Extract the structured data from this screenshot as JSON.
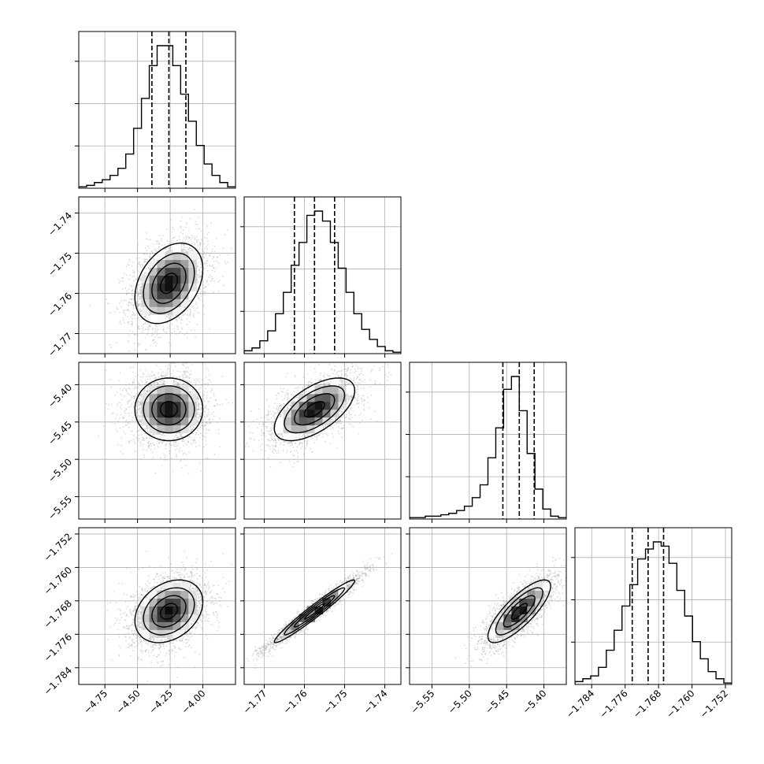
{
  "figure": {
    "type": "corner_plot",
    "n_params": 4,
    "background": "#ffffff",
    "line_color": "#000000",
    "point_color": "#9a9a9a",
    "grid_color": "#b0b0b0"
  },
  "chart_data": {
    "type": "heatmap",
    "description_hidden": true,
    "params": [
      {
        "mean": -4.26,
        "q16": -4.39,
        "q50": -4.26,
        "q84": -4.13,
        "range": [
          -4.95,
          -3.75
        ],
        "ticks": [
          -4.75,
          -4.5,
          -4.25,
          -4.0
        ],
        "tick_labels": [
          "−4.75",
          "−4.50",
          "−4.25",
          "−4.00"
        ]
      },
      {
        "mean": -1.7575,
        "q16": -1.7625,
        "q50": -1.7575,
        "q84": -1.7525,
        "range": [
          -1.775,
          -1.736
        ],
        "ticks": [
          -1.77,
          -1.76,
          -1.75,
          -1.74
        ],
        "tick_labels": [
          "−1.77",
          "−1.76",
          "−1.75",
          "−1.74"
        ]
      },
      {
        "mean": -5.433,
        "q16": -5.455,
        "q50": -5.433,
        "q84": -5.413,
        "range": [
          -5.58,
          -5.37
        ],
        "ticks": [
          -5.55,
          -5.5,
          -5.45,
          -5.4
        ],
        "tick_labels": [
          "−5.55",
          "−5.50",
          "−5.45",
          "−5.40"
        ]
      },
      {
        "mean": -1.7705,
        "q16": -1.7743,
        "q50": -1.7705,
        "q84": -1.7668,
        "range": [
          -1.788,
          -1.7505
        ],
        "ticks": [
          -1.784,
          -1.776,
          -1.768,
          -1.76,
          -1.752
        ],
        "tick_labels": [
          "−1.784",
          "−1.776",
          "−1.768",
          "−1.760",
          "−1.752"
        ]
      }
    ],
    "correlations": [
      {
        "i": 1,
        "j": 0,
        "rho": 0.35
      },
      {
        "i": 2,
        "j": 0,
        "rho": 0.0
      },
      {
        "i": 2,
        "j": 1,
        "rho": 0.6
      },
      {
        "i": 3,
        "j": 0,
        "rho": 0.3
      },
      {
        "i": 3,
        "j": 1,
        "rho": 0.97
      },
      {
        "i": 3,
        "j": 2,
        "rho": 0.8
      }
    ],
    "histograms": [
      {
        "bins": 20,
        "counts": [
          0.01,
          0.02,
          0.04,
          0.06,
          0.09,
          0.14,
          0.24,
          0.42,
          0.63,
          0.86,
          1.0,
          1.0,
          0.86,
          0.66,
          0.47,
          0.3,
          0.17,
          0.09,
          0.04,
          0.01
        ],
        "range": [
          -4.95,
          -3.75
        ]
      },
      {
        "bins": 20,
        "counts": [
          0.02,
          0.04,
          0.09,
          0.16,
          0.28,
          0.43,
          0.62,
          0.78,
          0.97,
          1.0,
          0.93,
          0.78,
          0.6,
          0.43,
          0.28,
          0.17,
          0.1,
          0.05,
          0.02,
          0.01
        ],
        "range": [
          -1.775,
          -1.736
        ]
      },
      {
        "bins": 20,
        "counts": [
          0.01,
          0.01,
          0.02,
          0.02,
          0.03,
          0.04,
          0.06,
          0.09,
          0.15,
          0.24,
          0.43,
          0.64,
          0.91,
          1.0,
          0.76,
          0.46,
          0.21,
          0.07,
          0.02,
          0.01
        ],
        "range": [
          -5.58,
          -5.37
        ]
      },
      {
        "bins": 20,
        "counts": [
          0.02,
          0.04,
          0.06,
          0.12,
          0.24,
          0.38,
          0.55,
          0.7,
          0.88,
          0.95,
          1.0,
          0.97,
          0.85,
          0.66,
          0.48,
          0.3,
          0.18,
          0.09,
          0.04,
          0.01
        ],
        "range": [
          -1.788,
          -1.7505
        ]
      }
    ],
    "contour_levels_sigma": [
      0.5,
      1.0,
      1.5,
      2.0
    ],
    "quantiles": [
      0.16,
      0.5,
      0.84
    ],
    "xlabel": "",
    "ylabel": "",
    "title": ""
  }
}
